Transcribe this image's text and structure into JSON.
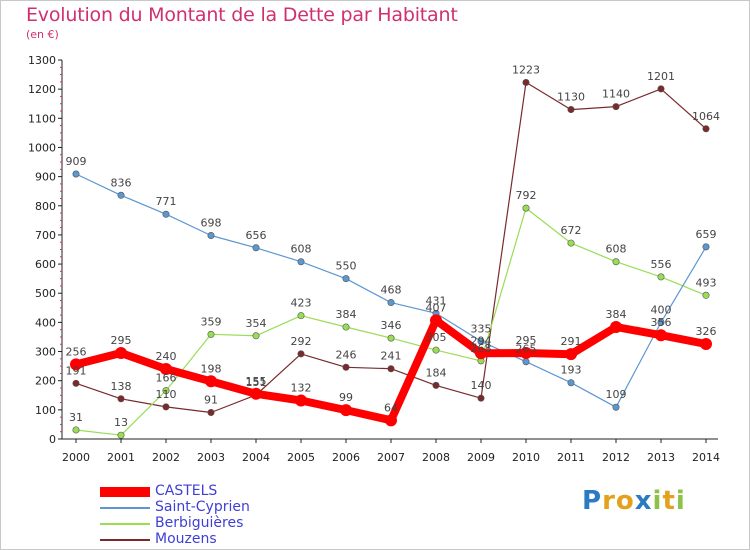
{
  "title": "Evolution du Montant de la Dette par Habitant",
  "subtitle": "(en €)",
  "logo_text": "Proxiti",
  "chart_data": {
    "type": "line",
    "title": "Evolution du Montant de la Dette par Habitant",
    "subtitle": "(en €)",
    "xlabel": "",
    "ylabel": "",
    "ylim": [
      0,
      1300
    ],
    "yticks": [
      0,
      100,
      200,
      300,
      400,
      500,
      600,
      700,
      800,
      900,
      1000,
      1100,
      1200,
      1300
    ],
    "grid": false,
    "legend_position": "bottom-left",
    "categories": [
      "2000",
      "2001",
      "2002",
      "2003",
      "2004",
      "2005",
      "2006",
      "2007",
      "2008",
      "2009",
      "2010",
      "2011",
      "2012",
      "2013",
      "2014"
    ],
    "series": [
      {
        "name": "CASTELS",
        "color": "#ff0000",
        "values": [
          256,
          295,
          240,
          198,
          155,
          132,
          99,
          64,
          407,
          294,
          295,
          291,
          384,
          356,
          326
        ]
      },
      {
        "name": "Saint-Cyprien",
        "color": "#5b97d1",
        "values": [
          909,
          836,
          771,
          698,
          656,
          608,
          550,
          468,
          431,
          335,
          265,
          193,
          109,
          400,
          659
        ]
      },
      {
        "name": "Berbiguières",
        "color": "#99dd55",
        "values": [
          31,
          13,
          166,
          359,
          354,
          423,
          384,
          346,
          305,
          268,
          792,
          672,
          608,
          556,
          493
        ]
      },
      {
        "name": "Mouzens",
        "color": "#7a2a2a",
        "values": [
          191,
          138,
          110,
          91,
          151,
          292,
          246,
          241,
          184,
          140,
          1223,
          1130,
          1140,
          1201,
          1064
        ]
      }
    ]
  }
}
